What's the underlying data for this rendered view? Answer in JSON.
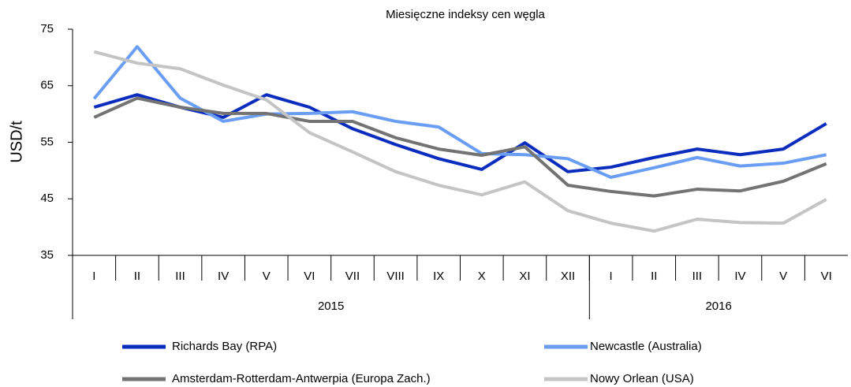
{
  "chart_data": {
    "type": "line",
    "title": "Miesięczne indeksy cen węgla",
    "ylabel": "USD/t",
    "categories": [
      "I",
      "II",
      "III",
      "IV",
      "V",
      "VI",
      "VII",
      "VIII",
      "IX",
      "X",
      "XI",
      "XII",
      "I",
      "II",
      "III",
      "IV",
      "V",
      "VI"
    ],
    "category_groups": [
      {
        "label": "2015",
        "size": 12
      },
      {
        "label": "2016",
        "size": 6
      }
    ],
    "ylim": [
      35,
      75
    ],
    "yticks": [
      35,
      45,
      55,
      65,
      75
    ],
    "legend": "bottom",
    "series": [
      {
        "name": "Richards Bay (RPA)",
        "color": "#0b2dbd",
        "values": [
          61.2,
          63.4,
          61.2,
          59.4,
          63.4,
          61.2,
          57.4,
          54.6,
          52.1,
          50.2,
          54.9,
          49.8,
          50.6,
          52.3,
          53.8,
          52.8,
          53.8,
          58.3
        ]
      },
      {
        "name": "Newcastle (Australia)",
        "color": "#6a9ef5",
        "values": [
          62.7,
          71.9,
          62.8,
          58.7,
          60.0,
          60.1,
          60.4,
          58.7,
          57.7,
          53.0,
          52.8,
          52.1,
          48.8,
          50.5,
          52.3,
          50.8,
          51.3,
          52.8
        ]
      },
      {
        "name": "Amsterdam-Rotterdam-Antwerpia (Europa Zach.)",
        "color": "#737373",
        "values": [
          59.4,
          62.8,
          61.2,
          60.1,
          60.1,
          58.7,
          58.7,
          55.8,
          53.8,
          52.7,
          54.2,
          47.4,
          46.3,
          45.5,
          46.7,
          46.4,
          48.1,
          51.2
        ]
      },
      {
        "name": "Nowy Orlean (USA)",
        "color": "#c4c4c4",
        "values": [
          71.0,
          69.0,
          68.0,
          65.1,
          62.5,
          56.7,
          53.3,
          49.8,
          47.4,
          45.7,
          48.0,
          42.9,
          40.7,
          39.3,
          41.4,
          40.8,
          40.7,
          44.9
        ]
      }
    ]
  }
}
